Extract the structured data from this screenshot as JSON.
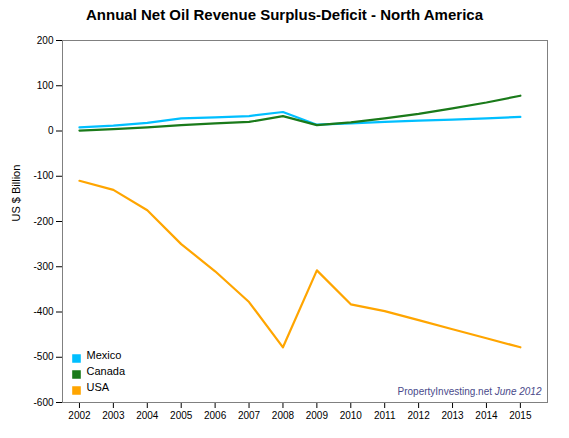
{
  "chart_data": {
    "type": "line",
    "title": "Annual Net Oil Revenue Surplus-Deficit - North America",
    "y_label": "US $ Billion",
    "x": [
      2002,
      2003,
      2004,
      2005,
      2006,
      2007,
      2008,
      2009,
      2010,
      2011,
      2012,
      2013,
      2014,
      2015
    ],
    "series": [
      {
        "name": "Mexico",
        "color": "#00BFFF",
        "values": [
          8,
          12,
          18,
          28,
          30,
          33,
          42,
          14,
          17,
          20,
          23,
          25,
          28,
          31
        ]
      },
      {
        "name": "Canada",
        "color": "#1A7A1A",
        "values": [
          1,
          4,
          8,
          13,
          17,
          20,
          33,
          13,
          19,
          28,
          38,
          50,
          63,
          78
        ]
      },
      {
        "name": "USA",
        "color": "#FFA500",
        "values": [
          -110,
          -130,
          -175,
          -250,
          -310,
          -378,
          -478,
          -308,
          -383,
          -398,
          -418,
          -438,
          -458,
          -478
        ]
      }
    ],
    "xlim": [
      2001.5,
      2015.8
    ],
    "xticks": [
      2002,
      2003,
      2004,
      2005,
      2006,
      2007,
      2008,
      2009,
      2010,
      2011,
      2012,
      2013,
      2014,
      2015
    ],
    "ylim": [
      -600,
      200
    ],
    "yticks": [
      -600,
      -500,
      -400,
      -300,
      -200,
      -100,
      0,
      100,
      200
    ],
    "grid": false,
    "legend": "lower left",
    "annotations": [
      {
        "text": "PropertyInvesting.net",
        "color": "#4A4A8A"
      },
      {
        "text": " June 2012",
        "color": "#4A4A8A"
      }
    ]
  }
}
